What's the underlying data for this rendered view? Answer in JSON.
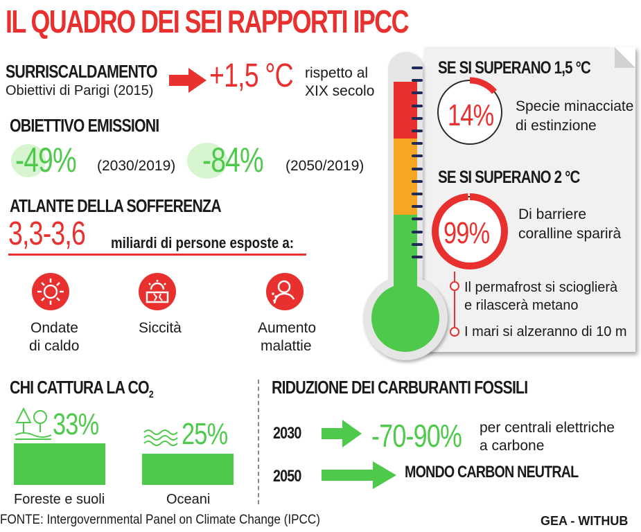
{
  "title": "IL QUADRO DEI SEI RAPPORTI IPCC",
  "warming": {
    "heading": "SURRISCALDAMENTO",
    "sub": "Obiettivi di Parigi (2015)",
    "value": "+1,5 °C",
    "note_line1": "rispetto al",
    "note_line2": "XIX secolo"
  },
  "emissions": {
    "heading": "OBIETTIVO EMISSIONI",
    "items": [
      {
        "value": "-49%",
        "period": "(2030/2019)"
      },
      {
        "value": "-84%",
        "period": "(2050/2019)"
      }
    ]
  },
  "atlas": {
    "heading": "ATLANTE DELLA SOFFERENZA",
    "value": "3,3-3,6",
    "text": "miliardi di persone esposte a:",
    "items": [
      {
        "line1": "Ondate",
        "line2": "di caldo",
        "icon": "sun-icon"
      },
      {
        "line1": "Siccità",
        "line2": "",
        "icon": "drought-icon"
      },
      {
        "line1": "Aumento",
        "line2": "malattie",
        "icon": "sick-person-icon"
      }
    ]
  },
  "panel": {
    "heading1": "SE SI SUPERANO 1,5 °C",
    "stat1": {
      "value": "14%",
      "line1": "Specie minacciate",
      "line2": "di estinzione",
      "fraction": 0.14
    },
    "heading2": "SE SI SUPERANO 2 °C",
    "stat2": {
      "value": "99%",
      "line1": "Di barriere",
      "line2": "coralline sparirà",
      "fraction": 0.99
    },
    "bullet1_line1": "Il permafrost si scioglierà",
    "bullet1_line2": "e rilascerà metano",
    "bullet2": "I mari si alzeranno di 10 m"
  },
  "co2": {
    "heading": "CHI CATTURA LA CO",
    "heading_sub": "2",
    "items": [
      {
        "value": "33%",
        "label": "Foreste e suoli",
        "fraction": 0.33,
        "icon": "forest-icon"
      },
      {
        "value": "25%",
        "label": "Oceani",
        "fraction": 0.25,
        "icon": "waves-icon"
      }
    ]
  },
  "fossil": {
    "heading": "RIDUZIONE DEI CARBURANTI FOSSILI",
    "rows": [
      {
        "year": "2030",
        "value": "-70-90%",
        "note_line1": "per centrali elettriche",
        "note_line2": "a carbone"
      },
      {
        "year": "2050",
        "value": "MONDO CARBON NEUTRAL"
      }
    ]
  },
  "source": "FONTE: Intergovernmental Panel on Climate Change (IPCC)",
  "credit": "GEA - WITHUB",
  "colors": {
    "red": "#e8302f",
    "green": "#4ec94b",
    "orange": "#f5a623",
    "navy": "#1f2a56"
  }
}
